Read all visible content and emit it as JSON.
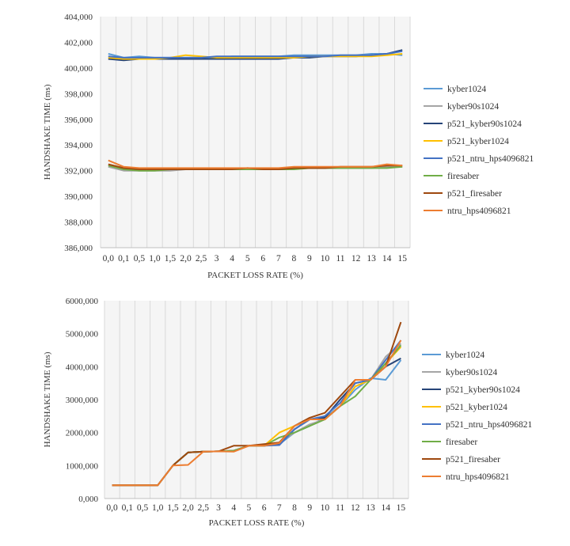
{
  "chart_data": [
    {
      "type": "line",
      "title": "",
      "xlabel": "PACKET LOSS RATE (%)",
      "ylabel": "HANDSHAKE TIME (ms)",
      "categories": [
        "0,0",
        "0,1",
        "0,5",
        "1,0",
        "1,5",
        "2,0",
        "2,5",
        "3",
        "4",
        "5",
        "6",
        "7",
        "8",
        "9",
        "10",
        "11",
        "12",
        "13",
        "14",
        "15"
      ],
      "yticks": [
        "386,000",
        "388,000",
        "390,000",
        "392,000",
        "394,000",
        "396,000",
        "398,000",
        "400,000",
        "402,000",
        "404,000"
      ],
      "ylim": [
        386,
        404
      ],
      "grid": "vertical",
      "legend": "right",
      "series": [
        {
          "name": "kyber1024",
          "color": "#5b9bd5",
          "values": [
            401.1,
            400.8,
            400.9,
            400.8,
            400.8,
            400.8,
            400.8,
            400.8,
            400.9,
            400.9,
            400.9,
            400.9,
            401.0,
            401.0,
            401.0,
            401.0,
            401.0,
            401.1,
            401.1,
            401.0
          ]
        },
        {
          "name": "kyber90s1024",
          "color": "#a5a5a5",
          "values": [
            392.3,
            392.0,
            392.0,
            392.0,
            392.0,
            392.1,
            392.1,
            392.1,
            392.1,
            392.2,
            392.1,
            392.1,
            392.2,
            392.2,
            392.2,
            392.2,
            392.2,
            392.2,
            392.3,
            392.3
          ]
        },
        {
          "name": "p521_kyber90s1024",
          "color": "#264478",
          "values": [
            400.7,
            400.6,
            400.7,
            400.7,
            400.7,
            400.7,
            400.7,
            400.7,
            400.7,
            400.7,
            400.7,
            400.7,
            400.8,
            400.8,
            400.9,
            400.9,
            400.9,
            401.0,
            401.1,
            401.4
          ]
        },
        {
          "name": "p521_kyber1024",
          "color": "#ffc000",
          "values": [
            400.8,
            400.7,
            400.7,
            400.7,
            400.8,
            401.0,
            400.9,
            400.8,
            400.8,
            400.8,
            400.8,
            400.8,
            400.8,
            400.9,
            400.9,
            400.9,
            400.9,
            400.9,
            401.0,
            401.1
          ]
        },
        {
          "name": "p521_ntru_hps4096821",
          "color": "#4472c4",
          "values": [
            400.9,
            400.8,
            400.8,
            400.8,
            400.8,
            400.8,
            400.8,
            400.9,
            400.9,
            400.9,
            400.9,
            400.9,
            400.9,
            400.9,
            400.9,
            401.0,
            401.0,
            401.0,
            401.1,
            401.3
          ]
        },
        {
          "name": "firesaber",
          "color": "#70ad47",
          "values": [
            392.4,
            392.1,
            392.0,
            392.0,
            392.1,
            392.1,
            392.1,
            392.1,
            392.1,
            392.1,
            392.1,
            392.1,
            392.1,
            392.2,
            392.2,
            392.2,
            392.2,
            392.2,
            392.2,
            392.3
          ]
        },
        {
          "name": "p521_firesaber",
          "color": "#9e480e",
          "values": [
            392.5,
            392.2,
            392.1,
            392.1,
            392.1,
            392.1,
            392.1,
            392.1,
            392.1,
            392.2,
            392.1,
            392.1,
            392.2,
            392.2,
            392.2,
            392.3,
            392.3,
            392.3,
            392.4,
            392.4
          ]
        },
        {
          "name": "ntru_hps4096821",
          "color": "#ed7d31",
          "values": [
            392.8,
            392.3,
            392.2,
            392.2,
            392.2,
            392.2,
            392.2,
            392.2,
            392.2,
            392.2,
            392.2,
            392.2,
            392.3,
            392.3,
            392.3,
            392.3,
            392.3,
            392.3,
            392.5,
            392.4
          ]
        }
      ]
    },
    {
      "type": "line",
      "title": "",
      "xlabel": "PACKET LOSS RATE (%)",
      "ylabel": "HANDSHAKE TIME (ms)",
      "categories": [
        "0,0",
        "0,1",
        "0,5",
        "1,0",
        "1,5",
        "2,0",
        "2,5",
        "3",
        "4",
        "5",
        "6",
        "7",
        "8",
        "9",
        "10",
        "11",
        "12",
        "13",
        "14",
        "15"
      ],
      "yticks": [
        "0,000",
        "1000,000",
        "2000,000",
        "3000,000",
        "4000,000",
        "5000,000",
        "6000,000"
      ],
      "ylim": [
        0,
        6000
      ],
      "grid": "vertical",
      "legend": "right",
      "series": [
        {
          "name": "kyber1024",
          "color": "#5b9bd5",
          "values": [
            400,
            400,
            400,
            400,
            1000,
            1400,
            1420,
            1430,
            1450,
            1600,
            1600,
            1650,
            2000,
            2200,
            2450,
            2800,
            3300,
            3650,
            3600,
            4200
          ]
        },
        {
          "name": "kyber90s1024",
          "color": "#a5a5a5",
          "values": [
            400,
            400,
            400,
            400,
            1000,
            1400,
            1420,
            1430,
            1450,
            1600,
            1600,
            1700,
            2000,
            2250,
            2400,
            2800,
            3400,
            3600,
            4300,
            4700
          ]
        },
        {
          "name": "p521_kyber90s1024",
          "color": "#264478",
          "values": [
            400,
            400,
            400,
            400,
            1000,
            1400,
            1420,
            1430,
            1450,
            1600,
            1600,
            1650,
            2100,
            2400,
            2450,
            3000,
            3500,
            3600,
            4000,
            4250
          ]
        },
        {
          "name": "p521_kyber1024",
          "color": "#ffc000",
          "values": [
            400,
            400,
            400,
            400,
            1000,
            1400,
            1420,
            1430,
            1450,
            1600,
            1600,
            2000,
            2200,
            2400,
            2400,
            2800,
            3400,
            3600,
            4100,
            4600
          ]
        },
        {
          "name": "p521_ntru_hps4096821",
          "color": "#4472c4",
          "values": [
            400,
            400,
            400,
            400,
            1000,
            1400,
            1420,
            1430,
            1450,
            1600,
            1600,
            1620,
            2100,
            2400,
            2500,
            2900,
            3500,
            3600,
            4200,
            4800
          ]
        },
        {
          "name": "firesaber",
          "color": "#70ad47",
          "values": [
            400,
            400,
            400,
            400,
            1000,
            1400,
            1420,
            1430,
            1450,
            1600,
            1600,
            1850,
            2000,
            2200,
            2400,
            2800,
            3100,
            3600,
            4100,
            4650
          ]
        },
        {
          "name": "p521_firesaber",
          "color": "#9e480e",
          "values": [
            400,
            400,
            400,
            400,
            1000,
            1400,
            1420,
            1430,
            1600,
            1600,
            1650,
            1700,
            2200,
            2450,
            2600,
            3100,
            3600,
            3600,
            4000,
            5350
          ]
        },
        {
          "name": "ntru_hps4096821",
          "color": "#ed7d31",
          "values": [
            400,
            400,
            400,
            400,
            1000,
            1020,
            1420,
            1430,
            1420,
            1600,
            1600,
            1680,
            2200,
            2400,
            2400,
            2800,
            3600,
            3600,
            4000,
            4800
          ]
        }
      ]
    }
  ]
}
